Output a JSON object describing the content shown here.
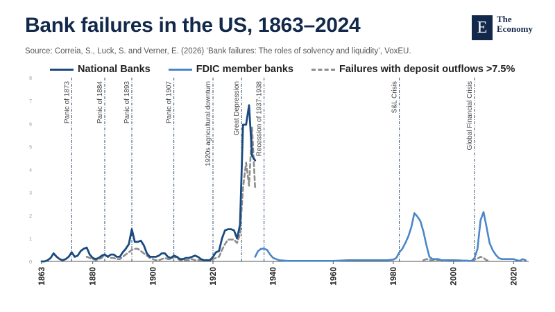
{
  "header": {
    "title": "Bank failures in the US, 1863–2024",
    "source": "Source: Correia, S., Luck, S. and Verner, E. (2026) ‘Bank failures: The roles of solvency and liquidity’, VoxEU."
  },
  "logo": {
    "letter": "E",
    "line1": "The",
    "line2": "Economy"
  },
  "colors": {
    "national": "#1a4a80",
    "fdic": "#4a86c8",
    "outflow": "#8c8c8c",
    "title": "#13294b",
    "event": "#1a3a60"
  },
  "chart_data": {
    "type": "line",
    "title": "Bank failures in the US, 1863–2024",
    "xlim": [
      1863,
      2025
    ],
    "ylim": [
      0,
      8
    ],
    "x_ticks": [
      1863,
      1880,
      1900,
      1920,
      1940,
      1960,
      1980,
      2000,
      2020
    ],
    "y_ticks": [
      0,
      1,
      2,
      3,
      4,
      5,
      6,
      7,
      8
    ],
    "legend_position": "top",
    "events": [
      {
        "label": "Panic of 1873",
        "year": 1873
      },
      {
        "label": "Panic of 1884",
        "year": 1884
      },
      {
        "label": "Panic of 1893",
        "year": 1893
      },
      {
        "label": "Panic of 1907",
        "year": 1907
      },
      {
        "label": "1920s agricultural downturn",
        "year": 1920
      },
      {
        "label": "Great Depression",
        "year": 1929.5
      },
      {
        "label": "Recession of 1937-1938",
        "year": 1937
      },
      {
        "label": "S&L Crisis",
        "year": 1982
      },
      {
        "label": "Global Financial Crisis",
        "year": 2007
      }
    ],
    "series": [
      {
        "name": "National Banks",
        "style": "solid",
        "x": [
          1863,
          1864,
          1865,
          1866,
          1867,
          1868,
          1869,
          1870,
          1871,
          1872,
          1873,
          1874,
          1875,
          1876,
          1877,
          1878,
          1879,
          1880,
          1881,
          1882,
          1883,
          1884,
          1885,
          1886,
          1887,
          1888,
          1889,
          1890,
          1891,
          1892,
          1893,
          1894,
          1895,
          1896,
          1897,
          1898,
          1899,
          1900,
          1901,
          1902,
          1903,
          1904,
          1905,
          1906,
          1907,
          1908,
          1909,
          1910,
          1911,
          1912,
          1913,
          1914,
          1915,
          1916,
          1917,
          1918,
          1919,
          1920,
          1921,
          1922,
          1923,
          1924,
          1925,
          1926,
          1927,
          1928,
          1929,
          1930,
          1931,
          1932,
          1933,
          1934
        ],
        "y": [
          0,
          0,
          0.05,
          0.15,
          0.35,
          0.2,
          0.1,
          0.05,
          0.1,
          0.2,
          0.4,
          0.2,
          0.25,
          0.45,
          0.55,
          0.6,
          0.3,
          0.15,
          0.1,
          0.15,
          0.25,
          0.3,
          0.2,
          0.3,
          0.3,
          0.2,
          0.2,
          0.4,
          0.55,
          0.75,
          1.4,
          0.85,
          0.85,
          0.9,
          0.7,
          0.35,
          0.2,
          0.2,
          0.2,
          0.25,
          0.35,
          0.35,
          0.2,
          0.15,
          0.25,
          0.2,
          0.1,
          0.1,
          0.15,
          0.15,
          0.2,
          0.25,
          0.2,
          0.1,
          0.05,
          0.05,
          0.05,
          0.2,
          0.4,
          0.45,
          1.0,
          1.35,
          1.4,
          1.4,
          1.35,
          1.0,
          1.6,
          5.95,
          5.95,
          6.8,
          4.6,
          4.4
        ]
      },
      {
        "name": "FDIC member banks",
        "style": "solid",
        "x": [
          1934,
          1935,
          1936,
          1937,
          1938,
          1939,
          1940,
          1941,
          1942,
          1945,
          1950,
          1960,
          1965,
          1970,
          1975,
          1978,
          1980,
          1981,
          1982,
          1983,
          1984,
          1985,
          1986,
          1987,
          1988,
          1989,
          1990,
          1991,
          1992,
          1993,
          1994,
          1995,
          1996,
          2000,
          2005,
          2006,
          2007,
          2008,
          2009,
          2010,
          2011,
          2012,
          2013,
          2014,
          2015,
          2016,
          2018,
          2019,
          2020,
          2021,
          2022,
          2023,
          2024
        ],
        "y": [
          0.2,
          0.45,
          0.55,
          0.55,
          0.5,
          0.3,
          0.15,
          0.1,
          0.05,
          0.02,
          0.02,
          0.02,
          0.05,
          0.05,
          0.05,
          0.05,
          0.08,
          0.15,
          0.4,
          0.55,
          0.8,
          1.1,
          1.5,
          2.1,
          1.95,
          1.75,
          1.3,
          0.7,
          0.2,
          0.1,
          0.1,
          0.1,
          0.05,
          0.05,
          0.02,
          0.02,
          0.15,
          0.55,
          1.8,
          2.15,
          1.5,
          0.8,
          0.5,
          0.3,
          0.15,
          0.1,
          0.1,
          0.1,
          0.1,
          0.05,
          0.02,
          0.1,
          0.05
        ]
      },
      {
        "name": "Failures with deposit outflows >7.5%",
        "style": "dashed",
        "x": [
          1878,
          1879,
          1880,
          1881,
          1882,
          1883,
          1884,
          1885,
          1886,
          1887,
          1888,
          1889,
          1890,
          1891,
          1892,
          1893,
          1894,
          1895,
          1896,
          1897,
          1898,
          1899,
          1900,
          1901,
          1902,
          1903,
          1904,
          1905,
          1906,
          1907,
          1908,
          1909,
          1910,
          1911,
          1912,
          1913,
          1914,
          1915,
          1916,
          1917,
          1918,
          1919,
          1920,
          1921,
          1922,
          1923,
          1924,
          1925,
          1926,
          1927,
          1928,
          1929,
          1930,
          1931,
          1932,
          1933,
          1934
        ],
        "y": [
          0.2,
          0.15,
          0.1,
          0.05,
          0.1,
          0.15,
          0.3,
          0.2,
          0.15,
          0.15,
          0.1,
          0.1,
          0.2,
          0.3,
          0.4,
          0.5,
          0.55,
          0.55,
          0.45,
          0.35,
          0.25,
          0.15,
          0.1,
          0.05,
          0.05,
          0.1,
          0.15,
          0.1,
          0.1,
          0.2,
          0.15,
          0.05,
          0.05,
          0.05,
          0.05,
          0.1,
          0.05,
          0.05,
          0.05,
          0.05,
          0.05,
          0.05,
          0.1,
          0.15,
          0.2,
          0.5,
          0.75,
          0.95,
          0.95,
          0.95,
          0.8,
          1.2,
          3.2,
          4.3,
          3.3,
          5.85,
          3.2
        ]
      },
      {
        "name": "",
        "style": "dashed",
        "x": [
          1990,
          1991,
          1992,
          1993,
          1995,
          2000,
          2005,
          2006,
          2007,
          2008,
          2009,
          2010,
          2011,
          2012
        ],
        "y": [
          0.05,
          0.1,
          0.08,
          0.02,
          0.02,
          0.05,
          0.03,
          0.03,
          0.08,
          0.12,
          0.2,
          0.15,
          0.05,
          0.02
        ]
      }
    ]
  }
}
